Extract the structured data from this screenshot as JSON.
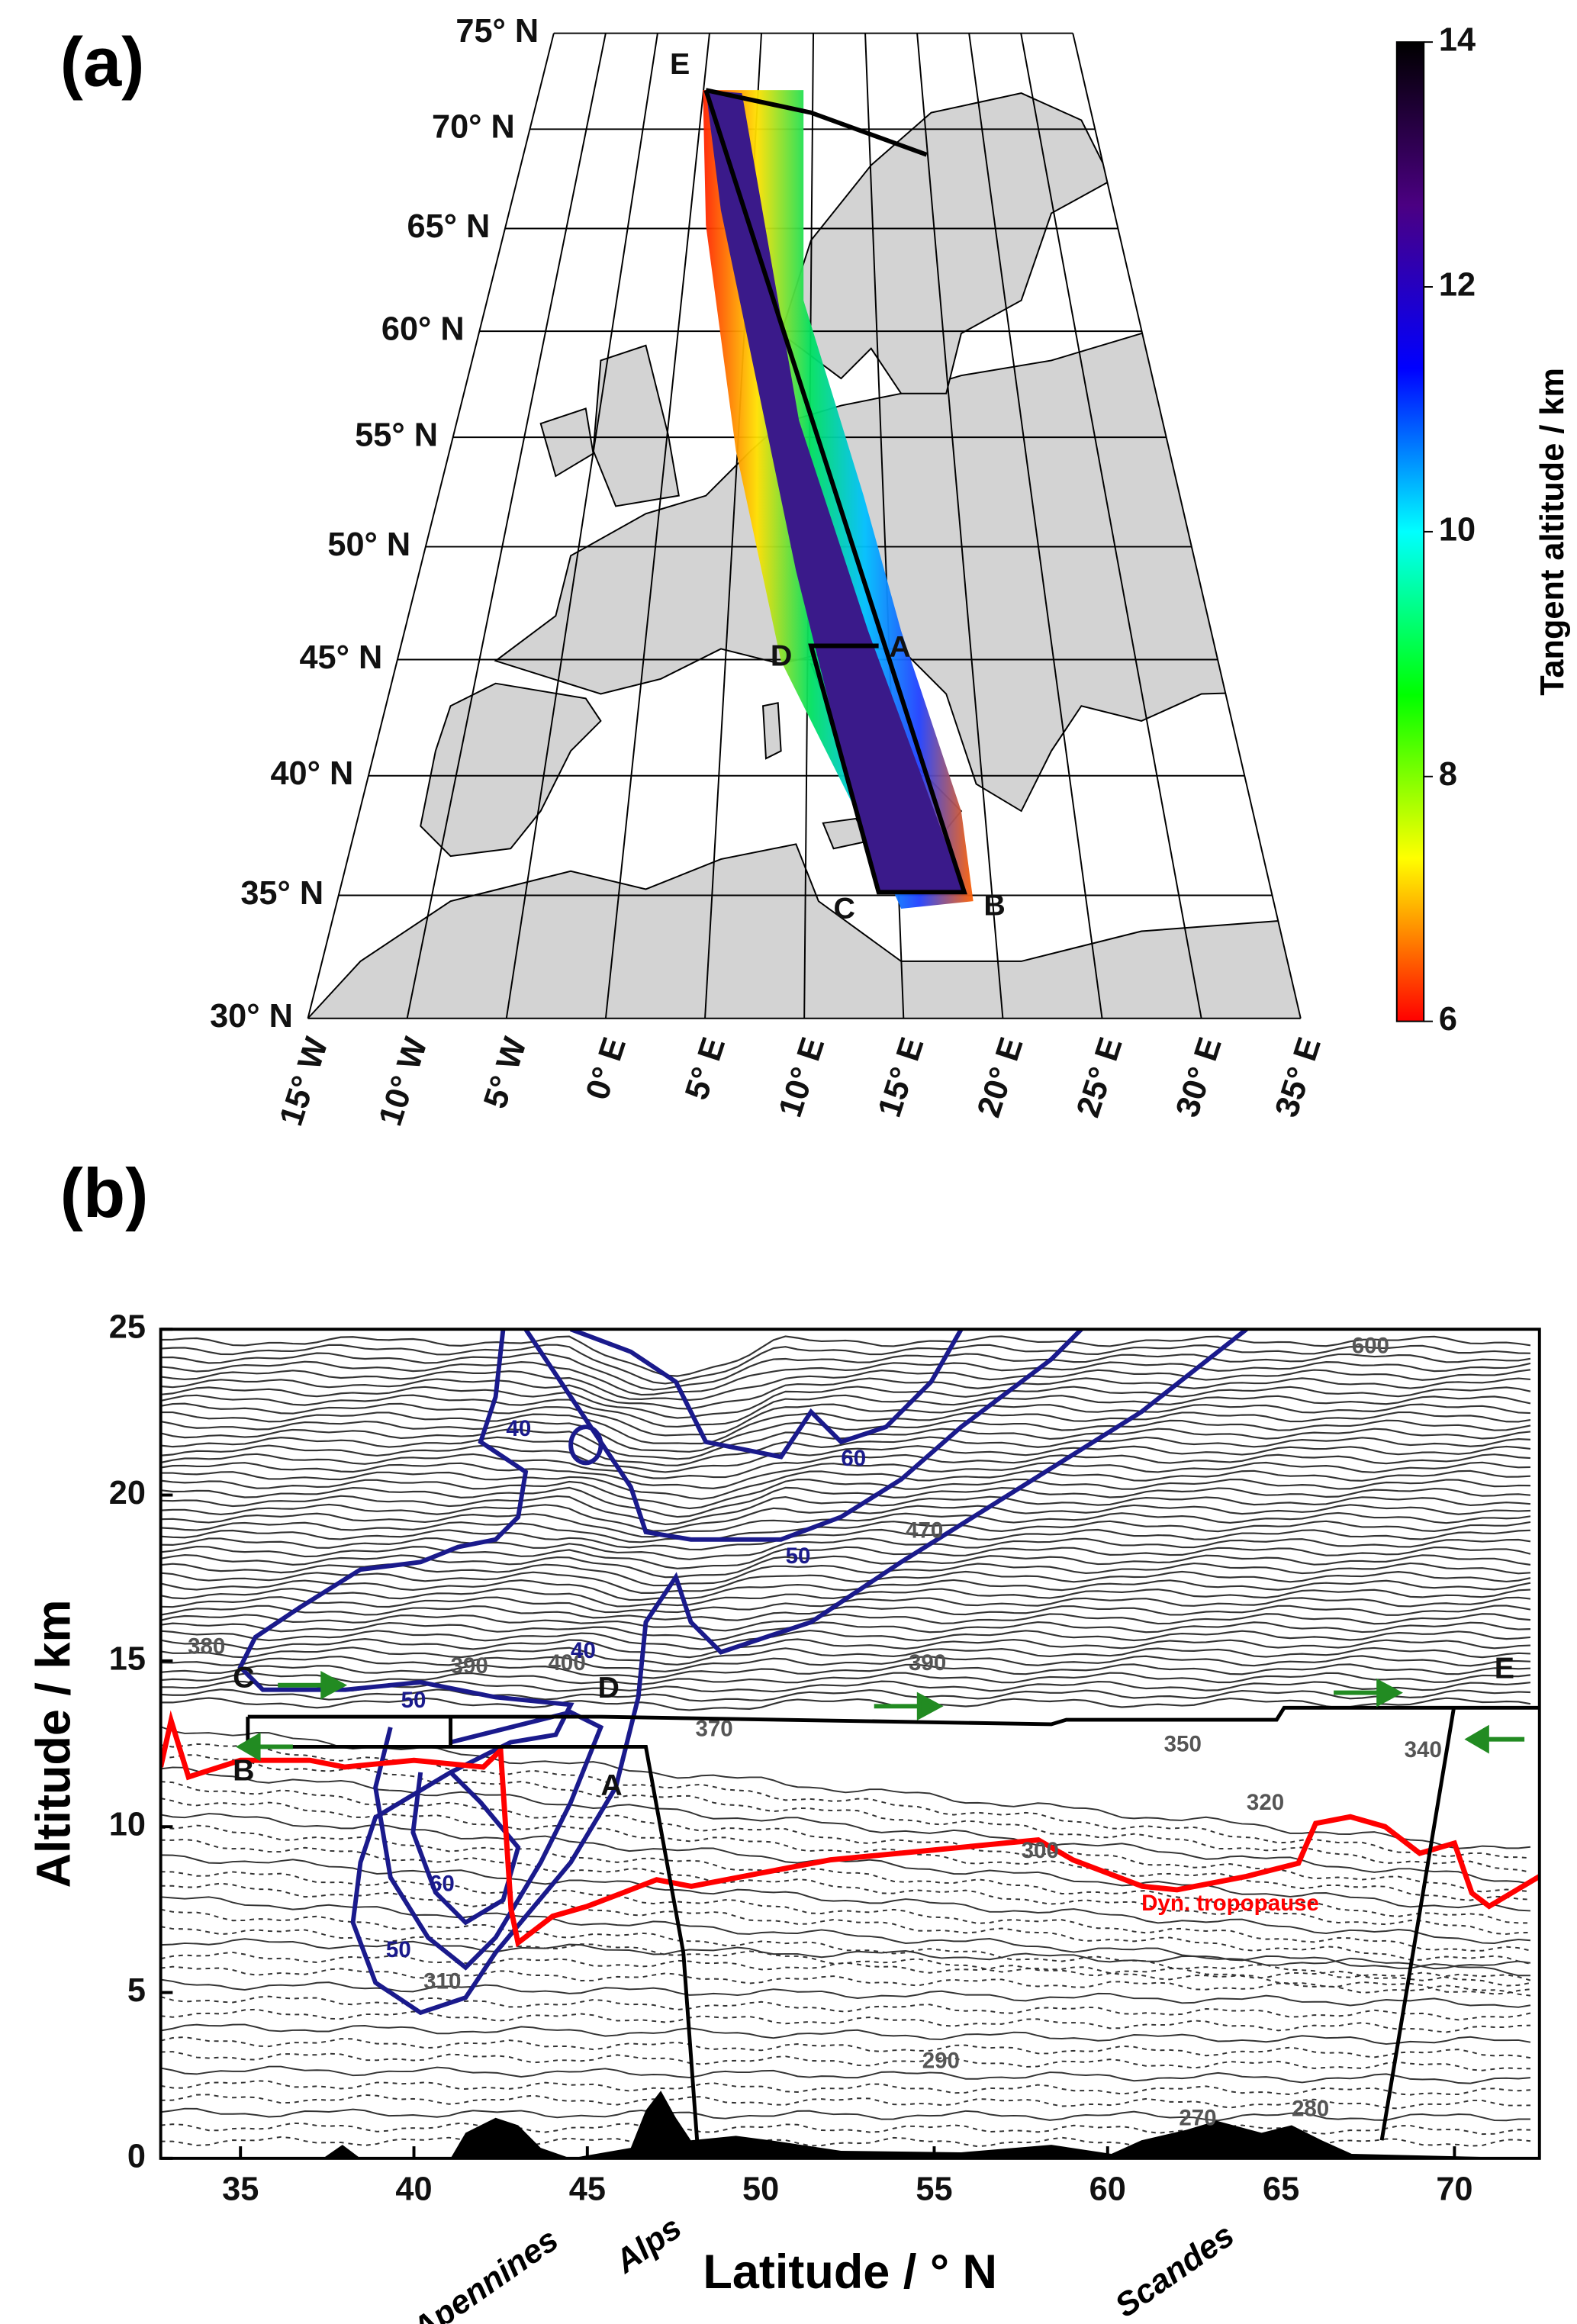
{
  "chart_data": [
    {
      "type": "map",
      "panel": "(a)",
      "lat_ticks": [
        {
          "value": 30,
          "label": "30° N"
        },
        {
          "value": 35,
          "label": "35° N"
        },
        {
          "value": 40,
          "label": "40° N"
        },
        {
          "value": 45,
          "label": "45° N"
        },
        {
          "value": 50,
          "label": "50° N"
        },
        {
          "value": 55,
          "label": "55° N"
        },
        {
          "value": 60,
          "label": "60° N"
        },
        {
          "value": 65,
          "label": "65° N"
        },
        {
          "value": 70,
          "label": "70° N"
        },
        {
          "value": 75,
          "label": "75° N"
        }
      ],
      "lon_ticks": [
        {
          "value": -15,
          "label": "15° W"
        },
        {
          "value": -10,
          "label": "10° W"
        },
        {
          "value": -5,
          "label": "5° W"
        },
        {
          "value": 0,
          "label": "0° E"
        },
        {
          "value": 5,
          "label": "5° E"
        },
        {
          "value": 10,
          "label": "10° E"
        },
        {
          "value": 15,
          "label": "15° E"
        },
        {
          "value": 20,
          "label": "20° E"
        },
        {
          "value": 25,
          "label": "25° E"
        },
        {
          "value": 30,
          "label": "30° E"
        },
        {
          "value": 35,
          "label": "35° E"
        }
      ],
      "point_labels": [
        "A",
        "B",
        "C",
        "D",
        "E"
      ],
      "colorbar": {
        "label": "Tangent altitude / km",
        "lim": [
          6,
          14
        ],
        "ticks": [
          6,
          8,
          10,
          12,
          14
        ],
        "colors": [
          "#ff0000",
          "#ffff00",
          "#00ff00",
          "#00ffff",
          "#0000ff",
          "#4b0082",
          "#000000"
        ]
      }
    },
    {
      "type": "contour",
      "panel": "(b)",
      "xlabel": "Latitude / ° N",
      "ylabel": "Altitude / km",
      "xlim": [
        32.7,
        72.45
      ],
      "ylim": [
        0,
        25
      ],
      "xticks": [
        35,
        40,
        45,
        50,
        55,
        60,
        65,
        70
      ],
      "yticks": [
        0,
        5,
        10,
        15,
        20,
        25
      ],
      "theta_labels": [
        600,
        470,
        380,
        390,
        400,
        390,
        370,
        350,
        340,
        320,
        300,
        310,
        290,
        280,
        270
      ],
      "wind_labels": [
        40,
        60,
        50,
        40,
        50,
        60,
        50
      ],
      "point_labels": [
        "A",
        "B",
        "C",
        "D",
        "E"
      ],
      "mountain_labels": [
        "Apennines",
        "Alps",
        "Scandes"
      ],
      "series": [
        {
          "name": "Dyn. tropopause",
          "color": "#ff0000",
          "x": [
            32.7,
            33,
            33.5,
            35,
            37,
            38,
            40,
            42,
            42.5,
            42.8,
            43,
            44,
            45,
            46,
            47,
            48,
            50,
            52,
            55,
            57,
            58,
            59,
            60,
            61,
            62,
            64,
            65.5,
            66,
            67,
            68,
            69,
            70,
            70.5,
            71,
            72.45
          ],
          "values": [
            11.8,
            13.2,
            11.5,
            12,
            12,
            11.8,
            12,
            11.8,
            12.3,
            7.5,
            6.5,
            7.3,
            7.6,
            8,
            8.4,
            8.2,
            8.6,
            9,
            9.3,
            9.5,
            9.6,
            9,
            8.6,
            8.2,
            8.1,
            8.5,
            8.9,
            10.1,
            10.3,
            10,
            9.2,
            9.5,
            8,
            7.6,
            8.5
          ]
        }
      ]
    }
  ]
}
